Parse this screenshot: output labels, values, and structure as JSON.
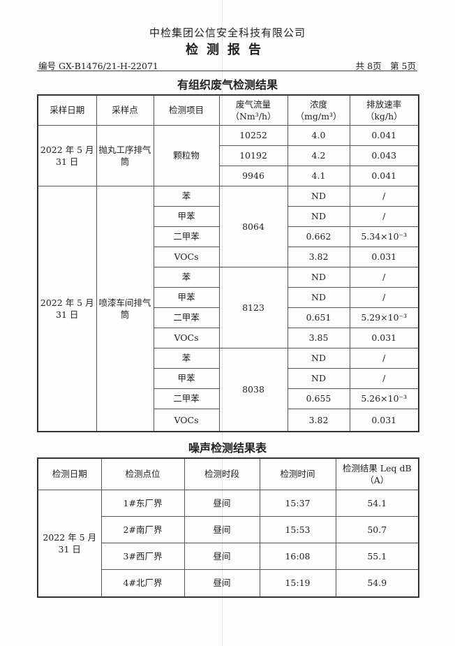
{
  "header": {
    "company": "中检集团公信安全科技有限公司",
    "title": "检测报告",
    "doc_no": "编号 GX-B1476/21-H-22071",
    "pages": "共 8页　第 5页"
  },
  "gas": {
    "title": "有组织废气检测结果",
    "columns": [
      "采样日期",
      "采样点",
      "检测项目",
      "废气流量（Nm³/h）",
      "浓度（mg/m³）",
      "排放速率（kg/h）"
    ],
    "groups": [
      {
        "date": "2022 年 5 月 31 日",
        "point": "抛丸工序排气筒",
        "rows": [
          {
            "item": "颗粒物",
            "flow": "10252",
            "conc": "4.0",
            "rate": "0.041"
          },
          {
            "item": "颗粒物",
            "flow": "10192",
            "conc": "4.2",
            "rate": "0.043"
          },
          {
            "item": "颗粒物",
            "flow": "9946",
            "conc": "4.1",
            "rate": "0.041"
          }
        ]
      },
      {
        "date": "2022 年 5 月 31 日",
        "point": "喷漆车间排气筒",
        "rows": [
          {
            "item": "苯",
            "flow": "8064",
            "conc": "ND",
            "rate": "/"
          },
          {
            "item": "甲苯",
            "flow": "8064",
            "conc": "ND",
            "rate": "/"
          },
          {
            "item": "二甲苯",
            "flow": "8064",
            "conc": "0.662",
            "rate": "5.34×10⁻³"
          },
          {
            "item": "VOCs",
            "flow": "8064",
            "conc": "3.82",
            "rate": "0.031"
          },
          {
            "item": "苯",
            "flow": "8123",
            "conc": "ND",
            "rate": "/"
          },
          {
            "item": "甲苯",
            "flow": "8123",
            "conc": "ND",
            "rate": "/"
          },
          {
            "item": "二甲苯",
            "flow": "8123",
            "conc": "0.651",
            "rate": "5.29×10⁻³"
          },
          {
            "item": "VOCs",
            "flow": "8123",
            "conc": "3.85",
            "rate": "0.031"
          },
          {
            "item": "苯",
            "flow": "8038",
            "conc": "ND",
            "rate": "/"
          },
          {
            "item": "甲苯",
            "flow": "8038",
            "conc": "ND",
            "rate": "/"
          },
          {
            "item": "二甲苯",
            "flow": "8038",
            "conc": "0.655",
            "rate": "5.26×10⁻³"
          },
          {
            "item": "VOCs",
            "flow": "8038",
            "conc": "3.82",
            "rate": "0.031"
          }
        ]
      }
    ]
  },
  "noise": {
    "title": "噪声检测结果表",
    "columns": [
      "检测日期",
      "检测点位",
      "检测时段",
      "检测时间",
      "检测结果 Leq dB（A）"
    ],
    "date": "2022 年 5 月 31 日",
    "rows": [
      {
        "point": "1#东厂界",
        "period": "昼间",
        "time": "15:37",
        "result": "54.1"
      },
      {
        "point": "2#南厂界",
        "period": "昼间",
        "time": "15:53",
        "result": "50.7"
      },
      {
        "point": "3#西厂界",
        "period": "昼间",
        "time": "16:08",
        "result": "55.1"
      },
      {
        "point": "4#北厂界",
        "period": "昼间",
        "time": "15:19",
        "result": "54.9"
      }
    ]
  }
}
